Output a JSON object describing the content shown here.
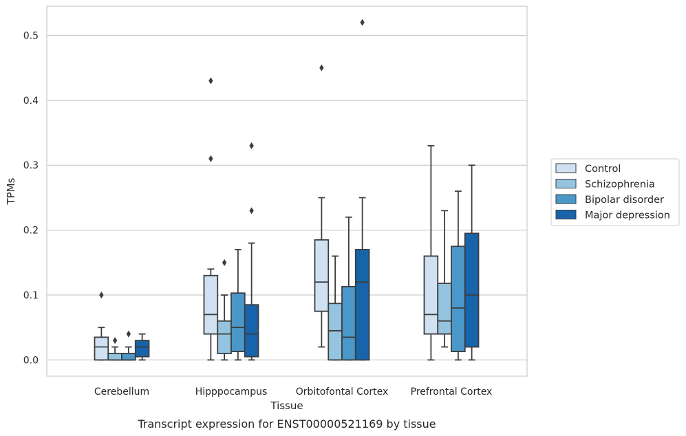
{
  "chart_data": {
    "type": "box",
    "xlabel": "Tissue",
    "ylabel": "TPMs",
    "caption": "Transcript expression for ENST00000521169 by tissue",
    "ylim": [
      -0.025,
      0.545
    ],
    "yticks": [
      0.0,
      0.1,
      0.2,
      0.3,
      0.4,
      0.5
    ],
    "ytick_labels": [
      "0.0",
      "0.1",
      "0.2",
      "0.3",
      "0.4",
      "0.5"
    ],
    "grid": "horizontal",
    "legend_position": "right",
    "categories": [
      "Cerebellum",
      "Hipppocampus",
      "Orbitofontal Cortex",
      "Prefrontal Cortex"
    ],
    "series": [
      {
        "name": "Control",
        "color": "#d0e1f2",
        "boxes": [
          {
            "whislo": 0.0,
            "q1": 0.0,
            "med": 0.02,
            "q3": 0.035,
            "whishi": 0.05,
            "fliers": [
              0.1
            ]
          },
          {
            "whislo": 0.0,
            "q1": 0.04,
            "med": 0.07,
            "q3": 0.13,
            "whishi": 0.14,
            "fliers": [
              0.31,
              0.43
            ]
          },
          {
            "whislo": 0.02,
            "q1": 0.075,
            "med": 0.12,
            "q3": 0.185,
            "whishi": 0.25,
            "fliers": [
              0.45
            ]
          },
          {
            "whislo": 0.0,
            "q1": 0.04,
            "med": 0.07,
            "q3": 0.16,
            "whishi": 0.33,
            "fliers": []
          }
        ]
      },
      {
        "name": "Schizophrenia",
        "color": "#94c4df",
        "boxes": [
          {
            "whislo": 0.0,
            "q1": 0.0,
            "med": 0.0,
            "q3": 0.01,
            "whishi": 0.02,
            "fliers": [
              0.03
            ]
          },
          {
            "whislo": 0.0,
            "q1": 0.01,
            "med": 0.04,
            "q3": 0.06,
            "whishi": 0.1,
            "fliers": [
              0.15
            ]
          },
          {
            "whislo": 0.0,
            "q1": 0.0,
            "med": 0.045,
            "q3": 0.087,
            "whishi": 0.16,
            "fliers": []
          },
          {
            "whislo": 0.02,
            "q1": 0.04,
            "med": 0.06,
            "q3": 0.118,
            "whishi": 0.23,
            "fliers": []
          }
        ]
      },
      {
        "name": "Bipolar disorder",
        "color": "#4a98c9",
        "boxes": [
          {
            "whislo": 0.0,
            "q1": 0.0,
            "med": 0.0,
            "q3": 0.01,
            "whishi": 0.02,
            "fliers": [
              0.04
            ]
          },
          {
            "whislo": 0.0,
            "q1": 0.013,
            "med": 0.05,
            "q3": 0.103,
            "whishi": 0.17,
            "fliers": []
          },
          {
            "whislo": 0.0,
            "q1": 0.0,
            "med": 0.035,
            "q3": 0.113,
            "whishi": 0.22,
            "fliers": []
          },
          {
            "whislo": 0.0,
            "q1": 0.013,
            "med": 0.08,
            "q3": 0.175,
            "whishi": 0.26,
            "fliers": []
          }
        ]
      },
      {
        "name": "Major depression",
        "color": "#1764ab",
        "boxes": [
          {
            "whislo": 0.0,
            "q1": 0.005,
            "med": 0.02,
            "q3": 0.03,
            "whishi": 0.04,
            "fliers": []
          },
          {
            "whislo": 0.0,
            "q1": 0.005,
            "med": 0.04,
            "q3": 0.085,
            "whishi": 0.18,
            "fliers": [
              0.23,
              0.33
            ]
          },
          {
            "whislo": 0.0,
            "q1": 0.0,
            "med": 0.12,
            "q3": 0.17,
            "whishi": 0.25,
            "fliers": [
              0.52
            ]
          },
          {
            "whislo": 0.0,
            "q1": 0.02,
            "med": 0.1,
            "q3": 0.195,
            "whishi": 0.3,
            "fliers": []
          }
        ]
      }
    ],
    "style": {
      "edge_color": "#3d3d3d",
      "grid_color": "#cccccc",
      "frame_color": "#cccccc"
    }
  }
}
